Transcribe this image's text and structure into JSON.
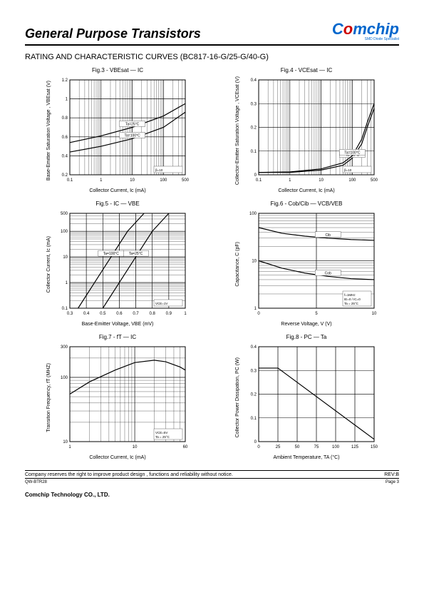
{
  "header": {
    "title": "General Purpose Transistors",
    "logo_main": "C",
    "logo_o": "o",
    "logo_rest": "mchip",
    "tagline": "SMD Diode Specialist"
  },
  "subtitle": "RATING AND CHARACTERISTIC CURVES (BC817-16-G/25-G/40-G)",
  "charts": {
    "c3": {
      "title": "Fig.3 - VBEsat — IC",
      "ylabel": "Base-Emitter Saturation Voltage , VBEsat (V)",
      "xlabel": "Collector Current, Ic (mA)",
      "type": "semilogx",
      "xlim": [
        0.1,
        500
      ],
      "ylim": [
        0.2,
        1.2
      ],
      "yticks": [
        0.2,
        0.4,
        0.6,
        0.8,
        1.0,
        1.2
      ],
      "xticks": [
        0.1,
        1,
        10,
        100,
        500
      ],
      "grid_color": "#000000",
      "bg": "#ffffff",
      "curves": [
        {
          "label": "Ta=25°C",
          "pts": [
            [
              0.1,
              0.54
            ],
            [
              1,
              0.61
            ],
            [
              10,
              0.7
            ],
            [
              100,
              0.82
            ],
            [
              500,
              0.95
            ]
          ]
        },
        {
          "label": "Ta=100°C",
          "pts": [
            [
              0.1,
              0.44
            ],
            [
              1,
              0.5
            ],
            [
              10,
              0.58
            ],
            [
              100,
              0.7
            ],
            [
              500,
              0.86
            ]
          ]
        }
      ],
      "note": "β=10"
    },
    "c4": {
      "title": "Fig.4 - VCEsat — IC",
      "ylabel": "Collector-Emitter Saturation Voltage , VCEsat (V)",
      "xlabel": "Collector Current, Ic (mA)",
      "type": "semilogx",
      "xlim": [
        0.1,
        500
      ],
      "ylim": [
        0,
        0.4
      ],
      "yticks": [
        0,
        0.1,
        0.2,
        0.3,
        0.4
      ],
      "xticks": [
        0.1,
        1,
        10,
        100,
        500
      ],
      "grid_color": "#000000",
      "bg": "#ffffff",
      "curves": [
        {
          "label": "Ta=25°C",
          "pts": [
            [
              0.1,
              0.01
            ],
            [
              1,
              0.01
            ],
            [
              10,
              0.02
            ],
            [
              50,
              0.04
            ],
            [
              100,
              0.07
            ],
            [
              200,
              0.13
            ],
            [
              300,
              0.2
            ],
            [
              500,
              0.28
            ]
          ]
        },
        {
          "label": "Ta=100°C",
          "pts": [
            [
              0.1,
              0.01
            ],
            [
              1,
              0.012
            ],
            [
              10,
              0.025
            ],
            [
              50,
              0.05
            ],
            [
              100,
              0.08
            ],
            [
              200,
              0.15
            ],
            [
              300,
              0.22
            ],
            [
              500,
              0.3
            ]
          ]
        }
      ],
      "note": "β=10"
    },
    "c5": {
      "title": "Fig.5 - IC — VBE",
      "ylabel": "Collector Current, Ic (mA)",
      "xlabel": "Base-Emitter Voltage, VBE (mV)",
      "type": "semilogy",
      "xlim": [
        0.3,
        1.0
      ],
      "ylim": [
        0.1,
        500
      ],
      "xticks": [
        0.3,
        0.4,
        0.5,
        0.6,
        0.7,
        0.8,
        0.9,
        1.0
      ],
      "yticks": [
        0.1,
        1,
        10,
        100,
        500
      ],
      "grid_color": "#000000",
      "bg": "#ffffff",
      "curves": [
        {
          "label": "Ta=25°C",
          "pts": [
            [
              0.5,
              0.1
            ],
            [
              0.6,
              1
            ],
            [
              0.7,
              10
            ],
            [
              0.8,
              100
            ],
            [
              0.9,
              500
            ]
          ]
        },
        {
          "label": "Ta=100°C",
          "pts": [
            [
              0.35,
              0.1
            ],
            [
              0.45,
              1
            ],
            [
              0.55,
              10
            ],
            [
              0.65,
              100
            ],
            [
              0.75,
              500
            ]
          ]
        }
      ],
      "note": "VCE=1V"
    },
    "c6": {
      "title": "Fig.6 - Cob/Cib — VCB/VEB",
      "ylabel": "Capacitance, C (pF)",
      "xlabel": "Reverse Voltage, V (V)",
      "type": "semilogy",
      "xlim": [
        0,
        10
      ],
      "ylim": [
        1,
        100
      ],
      "xticks": [
        0,
        5,
        10
      ],
      "yticks": [
        1,
        10,
        100
      ],
      "grid_color": "#000000",
      "bg": "#ffffff",
      "curves": [
        {
          "label": "Cib",
          "pts": [
            [
              0,
              50
            ],
            [
              2,
              38
            ],
            [
              4,
              33
            ],
            [
              6,
              30
            ],
            [
              8,
              28
            ],
            [
              10,
              27
            ]
          ]
        },
        {
          "label": "Cob",
          "pts": [
            [
              0,
              10
            ],
            [
              2,
              7
            ],
            [
              4,
              5.5
            ],
            [
              6,
              4.7
            ],
            [
              8,
              4.2
            ],
            [
              10,
              4
            ]
          ]
        }
      ],
      "note": "f=1MHz\nIE=0 / IC=0\nTa = 25°C"
    },
    "c7": {
      "title": "Fig.7 -  fT — IC",
      "ylabel": "Transition Frequency, fT (MHZ)",
      "xlabel": "Collector Current, Ic (mA)",
      "type": "loglog",
      "xlim": [
        1,
        60
      ],
      "ylim": [
        10,
        300
      ],
      "xticks": [
        1,
        10,
        60
      ],
      "yticks": [
        10,
        100,
        300
      ],
      "grid_color": "#000000",
      "bg": "#ffffff",
      "curves": [
        {
          "label": "",
          "pts": [
            [
              1,
              55
            ],
            [
              2,
              85
            ],
            [
              5,
              130
            ],
            [
              10,
              170
            ],
            [
              20,
              185
            ],
            [
              30,
              175
            ],
            [
              50,
              145
            ],
            [
              60,
              130
            ]
          ]
        }
      ],
      "note": "VCE=5V\nTa = 25°C"
    },
    "c8": {
      "title": "Fig.8 - PC — Ta",
      "ylabel": "Collector Power Dissipation, PC (W)",
      "xlabel": "Ambient Temperature, TA (°C)",
      "type": "linear",
      "xlim": [
        0,
        150
      ],
      "ylim": [
        0,
        0.4
      ],
      "xticks": [
        0,
        25,
        50,
        75,
        100,
        125,
        150
      ],
      "yticks": [
        0.0,
        0.1,
        0.2,
        0.3,
        0.4
      ],
      "grid_color": "#000000",
      "bg": "#ffffff",
      "curves": [
        {
          "label": "",
          "pts": [
            [
              0,
              0.31
            ],
            [
              25,
              0.31
            ],
            [
              150,
              0.01
            ]
          ]
        }
      ]
    }
  },
  "footer": {
    "text": "Company reserves the right to improve product design , functions and reliability without notice.",
    "rev": "REV:B",
    "doc": "QW-BTR28",
    "page": "Page 3",
    "company": "Comchip Technology CO., LTD."
  }
}
